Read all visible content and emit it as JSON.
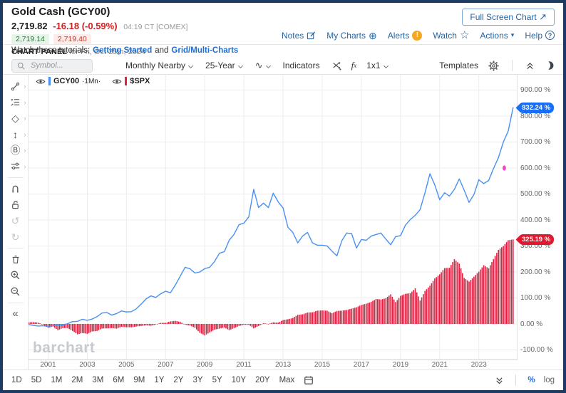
{
  "header": {
    "title": "Gold Cash (GCY00)",
    "last": "2,719.82",
    "change": "-16.18 (-0.59%)",
    "time": "04:19 CT [COMEX]",
    "bid": "2,719.14",
    "ask": "2,719.40",
    "panel": "CHART PANEL",
    "panel_date": "for Fri, Oct 25th, 2024",
    "full_screen_button": "Full Screen Chart",
    "links": {
      "notes": "Notes",
      "my_charts": "My Charts",
      "alerts": "Alerts",
      "watch": "Watch",
      "actions": "Actions",
      "help": "Help"
    }
  },
  "tutorial_bar": {
    "prefix": "Watch these tutorials:",
    "link_getting_started": "Getting Started",
    "conjunction": "and",
    "link_grid": "Grid/Multi-Charts"
  },
  "toolbar": {
    "symbol_placeholder": "Symbol...",
    "frequency": "Monthly Nearby",
    "range": "25-Year",
    "indicators": "Indicators",
    "fx_f": "f",
    "fx_x": "x",
    "grid_layout": "1x1",
    "templates": "Templates"
  },
  "icons": {
    "wave": "∿",
    "undo": "↺",
    "redo": "↻",
    "collapse_left": "«",
    "watch_star": "☆",
    "my_charts_plus": "⊕",
    "help_q": "?",
    "alert_mark": "!",
    "fullscreen_arrow": "↗",
    "actions_caret": "▾",
    "shapes_diamond": "◇",
    "updown_arrow": "↕",
    "circle_b": "Ⓑ",
    "tool_sub_arrow": "›"
  },
  "legend": {
    "series1_symbol": "GCY00",
    "series1_freq": "·1Mn·",
    "series2_symbol": "$SPX"
  },
  "watermark": "barchart",
  "y_axis_ticks": [
    "900.00 %",
    "800.00 %",
    "700.00 %",
    "600.00 %",
    "500.00 %",
    "400.00 %",
    "300.00 %",
    "200.00 %",
    "100.00 %",
    "0.00 %",
    "-100.00 %"
  ],
  "range_bar": {
    "ranges": [
      "1D",
      "5D",
      "1M",
      "2M",
      "3M",
      "6M",
      "9M",
      "1Y",
      "2Y",
      "3Y",
      "5Y",
      "10Y",
      "20Y",
      "Max"
    ],
    "scale_percent": "%",
    "scale_log": "log"
  },
  "colors": {
    "gold_line": "#4a90f4",
    "gold_pill": "#1a6ef5",
    "spx_bar": "#e02242",
    "spx_pill": "#dd1a30",
    "marker_pink": "#f545c0",
    "frame": "#1d3a63",
    "link_blue": "#2464a4",
    "alert_orange": "#f5a623"
  },
  "chart_data": {
    "type": "line+bar",
    "title": "GCY00 (Gold Cash, monthly nearby) vs $SPX — 25-year percent change comparison",
    "x_start": 2000.0,
    "x_end": 2024.83,
    "points_per_year": 4,
    "ylim": [
      -100,
      900
    ],
    "y_tick_step": 100,
    "y_unit": "%",
    "x_tick_years": [
      2001,
      2003,
      2005,
      2007,
      2009,
      2011,
      2013,
      2015,
      2017,
      2019,
      2021,
      2023
    ],
    "grid": true,
    "legend_position": "top-left",
    "last_values": {
      "GCY00": 832.24,
      "SPX": 325.19
    },
    "last_labels": {
      "GCY00": "832.24 %",
      "SPX": "325.19 %"
    },
    "marker": {
      "x": 2024.3,
      "value": 600,
      "series": "GCY00"
    },
    "series": [
      {
        "name": "GCY00",
        "type": "line",
        "color": "#4a90f4",
        "values": [
          -2,
          -6,
          -8,
          -7,
          -9,
          -7,
          -3,
          -5,
          1,
          9,
          10,
          18,
          14,
          19,
          28,
          42,
          44,
          34,
          40,
          50,
          46,
          47,
          58,
          76,
          96,
          108,
          102,
          116,
          126,
          120,
          150,
          184,
          218,
          212,
          196,
          200,
          213,
          218,
          240,
          272,
          278,
          322,
          345,
          382,
          388,
          412,
          518,
          448,
          465,
          448,
          503,
          470,
          446,
          372,
          352,
          312,
          338,
          352,
          312,
          303,
          303,
          300,
          280,
          262,
          320,
          350,
          348,
          292,
          325,
          322,
          338,
          344,
          350,
          326,
          305,
          336,
          340,
          380,
          402,
          418,
          440,
          505,
          578,
          535,
          478,
          505,
          492,
          518,
          558,
          515,
          468,
          498,
          555,
          540,
          552,
          598,
          640,
          700,
          742,
          832.24
        ]
      },
      {
        "name": "$SPX",
        "type": "bar",
        "color": "#e02242",
        "values": [
          6,
          7,
          5,
          -3,
          -15,
          -10,
          -24,
          -16,
          -16,
          -27,
          -40,
          -35,
          -38,
          -29,
          -27,
          -18,
          -17,
          -16,
          -18,
          -11,
          -13,
          -13,
          -10,
          -8,
          -5,
          -7,
          -2,
          4,
          4,
          10,
          12,
          8,
          -3,
          -6,
          -15,
          -34,
          -44,
          -33,
          -22,
          -18,
          -14,
          -24,
          -16,
          -8,
          -3,
          -3,
          -17,
          -8,
          3,
          0,
          6,
          5,
          15,
          18,
          23,
          35,
          37,
          44,
          45,
          51,
          52,
          51,
          41,
          50,
          51,
          54,
          59,
          64,
          73,
          78,
          85,
          96,
          94,
          99,
          114,
          84,
          108,
          116,
          118,
          137,
          90,
          127,
          147,
          175,
          191,
          215,
          216,
          249,
          232,
          177,
          163,
          182,
          201,
          226,
          214,
          250,
          285,
          300,
          322,
          325.19
        ]
      }
    ]
  }
}
